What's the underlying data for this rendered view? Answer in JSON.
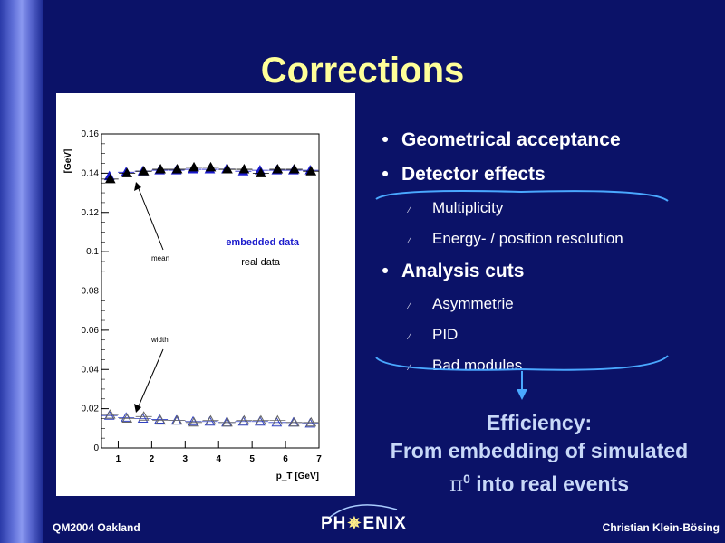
{
  "title": "Corrections",
  "bullets": [
    {
      "level": 1,
      "text": "Geometrical acceptance"
    },
    {
      "level": 1,
      "text": "Detector effects"
    },
    {
      "level": 2,
      "text": "Multiplicity"
    },
    {
      "level": 2,
      "text": "Energy- / position resolution"
    },
    {
      "level": 1,
      "text": "Analysis cuts"
    },
    {
      "level": 2,
      "text": "Asymmetrie"
    },
    {
      "level": 2,
      "text": "PID"
    },
    {
      "level": 2,
      "text": "Bad modules"
    }
  ],
  "efficiency": {
    "line1": "Efficiency:",
    "line2": "From embedding of simulated",
    "pi_symbol": "π",
    "pi_sup": "0",
    "line3_rest": " into real events"
  },
  "footer": {
    "left": "QM2004 Oakland",
    "right": "Christian Klein-Bösing"
  },
  "logo": {
    "part1": "PH",
    "sun": "✵",
    "part2": "ENIX"
  },
  "colors": {
    "background": "#0b1268",
    "title": "#ffff99",
    "efficiency": "#c8d8f8",
    "embedded": "#1a1acc",
    "real": "#000000"
  },
  "chart_data": {
    "type": "scatter",
    "ylabel": "[GeV]",
    "xlabel": "p_T [GeV]",
    "ylim": [
      0,
      0.16
    ],
    "xlim": [
      0.5,
      7
    ],
    "yticks": [
      "0",
      "0.02",
      "0.04",
      "0.06",
      "0.08",
      "0.1",
      "0.12",
      "0.14",
      "0.16"
    ],
    "xticks": [
      "1",
      "2",
      "3",
      "4",
      "5",
      "6",
      "7"
    ],
    "legend": [
      "embedded data",
      "real data"
    ],
    "annotations": [
      "mean",
      "width"
    ],
    "x": [
      0.75,
      1.25,
      1.75,
      2.25,
      2.75,
      3.25,
      3.75,
      4.25,
      4.75,
      5.25,
      5.75,
      6.25,
      6.75
    ],
    "series": [
      {
        "name": "embedded data",
        "values": [
          0.1385,
          0.1405,
          0.141,
          0.1415,
          0.1415,
          0.142,
          0.142,
          0.142,
          0.141,
          0.1415,
          0.1415,
          0.1415,
          0.1415
        ]
      },
      {
        "name": "real data",
        "values": [
          0.137,
          0.14,
          0.141,
          0.142,
          0.142,
          0.143,
          0.143,
          0.142,
          0.142,
          0.14,
          0.142,
          0.142,
          0.141
        ]
      },
      {
        "name": "embedded data",
        "values": [
          0.0165,
          0.0155,
          0.015,
          0.0145,
          0.014,
          0.0135,
          0.0135,
          0.013,
          0.0135,
          0.0135,
          0.013,
          0.013,
          0.0125
        ]
      },
      {
        "name": "real data",
        "values": [
          0.017,
          0.015,
          0.016,
          0.014,
          0.014,
          0.013,
          0.014,
          0.013,
          0.014,
          0.014,
          0.014,
          0.013,
          0.013
        ]
      }
    ]
  }
}
